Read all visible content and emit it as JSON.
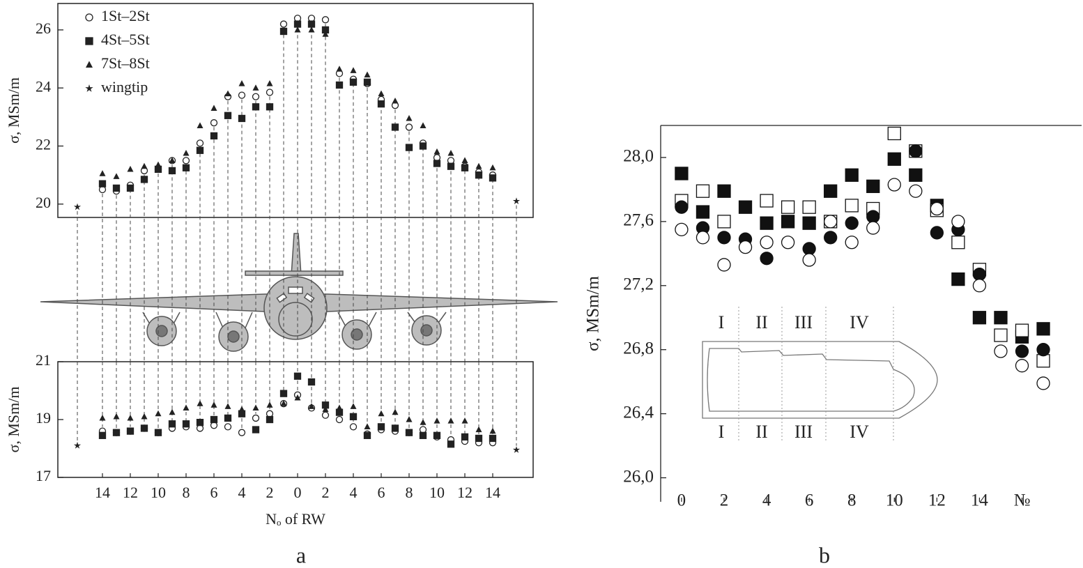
{
  "chart_data": [
    {
      "type": "scatter",
      "ylabel": "σ, MSm/m",
      "ylim": [
        19.54,
        26.91
      ],
      "yticks": [
        20,
        22,
        24,
        26
      ],
      "xlim": [
        -17.2,
        16.9
      ],
      "legend": "upper left",
      "series": [
        {
          "name": "1St–2St",
          "marker": "circle-open",
          "color": "#222",
          "x": [
            -14,
            -13,
            -12,
            -11,
            -10,
            -9,
            -8,
            -7,
            -6,
            -5,
            -4,
            -3,
            -2,
            -1,
            0,
            1,
            2,
            3,
            4,
            5,
            6,
            7,
            8,
            9,
            10,
            11,
            12,
            13,
            14
          ],
          "values": [
            20.5,
            20.45,
            20.65,
            21.15,
            21.2,
            21.5,
            21.5,
            22.1,
            22.8,
            23.7,
            23.75,
            23.7,
            23.85,
            26.2,
            26.4,
            26.4,
            26.35,
            24.5,
            24.3,
            24.15,
            23.6,
            23.4,
            22.65,
            22.1,
            21.6,
            21.5,
            21.3,
            21.1,
            21.0
          ]
        },
        {
          "name": "4St–5St",
          "marker": "square",
          "color": "#222",
          "x": [
            -14,
            -13,
            -12,
            -11,
            -10,
            -9,
            -8,
            -7,
            -6,
            -5,
            -4,
            -3,
            -2,
            -1,
            0,
            1,
            2,
            3,
            4,
            5,
            6,
            7,
            8,
            9,
            10,
            11,
            12,
            13,
            14
          ],
          "values": [
            20.7,
            20.55,
            20.55,
            20.85,
            21.2,
            21.15,
            21.25,
            21.85,
            22.35,
            23.05,
            22.95,
            23.35,
            23.35,
            25.95,
            26.2,
            26.2,
            26.0,
            24.1,
            24.2,
            24.2,
            23.45,
            22.65,
            21.95,
            22.0,
            21.4,
            21.3,
            21.25,
            21.0,
            20.9
          ]
        },
        {
          "name": "7St–8St",
          "marker": "triangle",
          "color": "#222",
          "x": [
            -14,
            -13,
            -12,
            -11,
            -10,
            -9,
            -8,
            -7,
            -6,
            -5,
            -4,
            -3,
            -2,
            -1,
            0,
            1,
            2,
            3,
            4,
            5,
            6,
            7,
            8,
            9,
            10,
            11,
            12,
            13,
            14
          ],
          "values": [
            21.05,
            20.95,
            21.2,
            21.3,
            21.35,
            21.5,
            21.75,
            22.7,
            23.3,
            23.8,
            24.15,
            24.0,
            24.15,
            25.95,
            26.0,
            26.0,
            25.85,
            24.65,
            24.6,
            24.45,
            23.8,
            23.55,
            22.95,
            22.7,
            21.8,
            21.75,
            21.5,
            21.3,
            21.25
          ]
        },
        {
          "name": "wingtip",
          "marker": "star",
          "color": "#222",
          "x": [
            -15.8,
            15.7
          ],
          "values": [
            19.9,
            20.1
          ]
        }
      ]
    },
    {
      "type": "scatter",
      "ylabel": "σ, MSm/m",
      "xlabel": "Nₒ of RW",
      "ylim": [
        17,
        21
      ],
      "yticks": [
        17,
        19,
        21
      ],
      "xlim": [
        -17.2,
        16.9
      ],
      "xticks": [
        {
          "value": -14,
          "label": "14"
        },
        {
          "value": -12,
          "label": "12"
        },
        {
          "value": -10,
          "label": "10"
        },
        {
          "value": -8,
          "label": "8"
        },
        {
          "value": -6,
          "label": "6"
        },
        {
          "value": -4,
          "label": "4"
        },
        {
          "value": -2,
          "label": "2"
        },
        0,
        2,
        4,
        6,
        8,
        10,
        12,
        14
      ],
      "series": [
        {
          "marker": "circle-open",
          "color": "#222",
          "x": [
            -14,
            -13,
            -12,
            -11,
            -10,
            -9,
            -8,
            -7,
            -6,
            -5,
            -4,
            -3,
            -2,
            -1,
            0,
            1,
            2,
            3,
            4,
            5,
            6,
            7,
            8,
            9,
            10,
            11,
            12,
            13,
            14
          ],
          "values": [
            18.6,
            18.55,
            18.6,
            18.7,
            18.55,
            18.7,
            18.75,
            18.7,
            18.8,
            18.75,
            18.55,
            19.05,
            19.2,
            19.55,
            19.85,
            19.4,
            19.15,
            19.0,
            18.75,
            18.5,
            18.65,
            18.6,
            18.55,
            18.65,
            18.4,
            18.3,
            18.25,
            18.2,
            18.2
          ]
        },
        {
          "marker": "square",
          "color": "#222",
          "x": [
            -14,
            -13,
            -12,
            -11,
            -10,
            -9,
            -8,
            -7,
            -6,
            -5,
            -4,
            -3,
            -2,
            -1,
            0,
            1,
            2,
            3,
            4,
            5,
            6,
            7,
            8,
            9,
            10,
            11,
            12,
            13,
            14
          ],
          "values": [
            18.45,
            18.55,
            18.6,
            18.7,
            18.55,
            18.85,
            18.85,
            18.9,
            19.0,
            19.05,
            19.2,
            18.65,
            19.0,
            19.9,
            20.5,
            20.3,
            19.5,
            19.25,
            19.1,
            18.45,
            18.75,
            18.7,
            18.55,
            18.45,
            18.45,
            18.15,
            18.4,
            18.35,
            18.35
          ]
        },
        {
          "marker": "triangle",
          "color": "#222",
          "x": [
            -14,
            -13,
            -12,
            -11,
            -10,
            -9,
            -8,
            -7,
            -6,
            -5,
            -4,
            -3,
            -2,
            -1,
            0,
            1,
            2,
            3,
            4,
            5,
            6,
            7,
            8,
            9,
            10,
            11,
            12,
            13,
            14
          ],
          "values": [
            19.05,
            19.1,
            19.05,
            19.1,
            19.2,
            19.25,
            19.4,
            19.55,
            19.5,
            19.45,
            19.35,
            19.4,
            19.5,
            19.55,
            19.75,
            19.45,
            19.35,
            19.4,
            19.45,
            18.75,
            19.2,
            19.25,
            19.0,
            18.9,
            18.95,
            18.95,
            18.95,
            18.65,
            18.6
          ]
        },
        {
          "marker": "star",
          "color": "#222",
          "x": [
            -15.8,
            15.7
          ],
          "values": [
            18.1,
            17.95
          ]
        }
      ]
    },
    {
      "type": "scatter",
      "ylabel": "σ, MSm/m",
      "ylim": [
        25.85,
        28.2
      ],
      "xlim": [
        -0.98,
        18.8
      ],
      "yticks": [
        {
          "value": 26.0,
          "label": "26,0"
        },
        {
          "value": 26.4,
          "label": "26,4"
        },
        {
          "value": 26.8,
          "label": "26,8"
        },
        {
          "value": 27.2,
          "label": "27,2"
        },
        {
          "value": 27.6,
          "label": "27,6"
        },
        {
          "value": 28.0,
          "label": "28,0"
        }
      ],
      "xticks": [
        0,
        2,
        4,
        6,
        8,
        10,
        12,
        14,
        {
          "value": 16,
          "label": "№"
        }
      ],
      "inset_labels": [
        "I",
        "II",
        "III",
        "IV"
      ],
      "series": [
        {
          "marker": "square",
          "color": "#111",
          "x": [
            0,
            1,
            2,
            3,
            4,
            5,
            6,
            7,
            8,
            9,
            10,
            11,
            12,
            13,
            14,
            15,
            16,
            17
          ],
          "values": [
            27.9,
            27.66,
            27.79,
            27.69,
            27.59,
            27.6,
            27.59,
            27.79,
            27.89,
            27.82,
            27.99,
            27.89,
            27.7,
            27.24,
            27.0,
            27.0,
            26.88,
            26.93
          ]
        },
        {
          "marker": "square-open",
          "color": "#111",
          "x": [
            0,
            1,
            2,
            4,
            5,
            6,
            7,
            8,
            9,
            10,
            11,
            12,
            13,
            14,
            15,
            16,
            17
          ],
          "values": [
            27.73,
            27.79,
            27.6,
            27.73,
            27.69,
            27.69,
            27.6,
            27.7,
            27.68,
            28.15,
            28.04,
            27.67,
            27.47,
            27.3,
            26.89,
            26.92,
            26.73
          ]
        },
        {
          "marker": "circle",
          "color": "#111",
          "x": [
            0,
            1,
            2,
            3,
            4,
            6,
            7,
            8,
            9,
            11,
            12,
            13,
            14,
            16,
            17
          ],
          "values": [
            27.69,
            27.56,
            27.5,
            27.49,
            27.37,
            27.43,
            27.5,
            27.59,
            27.63,
            28.04,
            27.53,
            27.55,
            27.27,
            26.79,
            26.8
          ]
        },
        {
          "marker": "circle-open",
          "color": "#111",
          "x": [
            0,
            1,
            2,
            3,
            4,
            5,
            6,
            7,
            8,
            9,
            10,
            11,
            12,
            13,
            14,
            15,
            16,
            17
          ],
          "values": [
            27.55,
            27.5,
            27.33,
            27.44,
            27.47,
            27.47,
            27.36,
            27.6,
            27.47,
            27.56,
            27.83,
            27.79,
            27.68,
            27.6,
            27.2,
            26.79,
            26.7,
            26.59
          ]
        }
      ]
    }
  ],
  "panel_labels": [
    "a",
    "b"
  ]
}
